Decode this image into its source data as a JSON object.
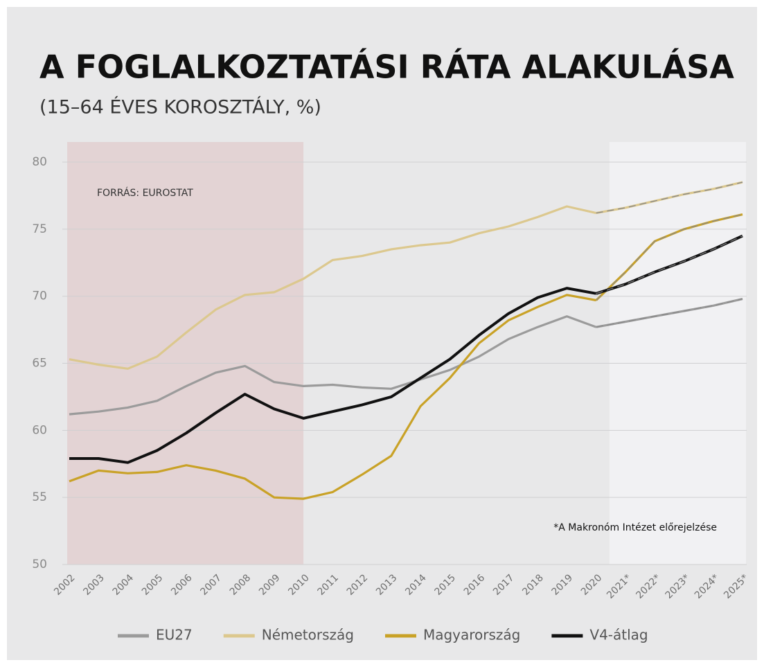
{
  "chart_data": {
    "type": "line",
    "title": "A FOGLALKOZTATÁSI RÁTA ALAKULÁSA",
    "subtitle": "(15–64 ÉVES KOROSZTÁLY, %)",
    "annotations": [
      "FORRÁS: EUROSTAT",
      "*A Makronóm Intézet előrejelzése"
    ],
    "categories": [
      "2002",
      "2003",
      "2004",
      "2005",
      "2006",
      "2007",
      "2008",
      "2009",
      "2010",
      "2011",
      "2012",
      "2013",
      "2014",
      "2015",
      "2016",
      "2017",
      "2018",
      "2019",
      "2020",
      "2021*",
      "2022*",
      "2023*",
      "2024*",
      "2025*"
    ],
    "series": [
      {
        "name": "EU27",
        "color": "#9b9b9b",
        "values": [
          61.2,
          61.4,
          61.7,
          62.2,
          63.3,
          64.3,
          64.8,
          63.6,
          63.3,
          63.4,
          63.2,
          63.1,
          63.8,
          64.5,
          65.5,
          66.8,
          67.7,
          68.5,
          67.7,
          68.1,
          68.5,
          68.9,
          69.3,
          69.8
        ]
      },
      {
        "name": "Németország",
        "color": "#dcc88e",
        "values": [
          65.3,
          64.9,
          64.6,
          65.5,
          67.3,
          69.0,
          70.1,
          70.3,
          71.3,
          72.7,
          73.0,
          73.5,
          73.8,
          74.0,
          74.7,
          75.2,
          75.9,
          76.7,
          76.2,
          76.6,
          77.1,
          77.6,
          78.0,
          78.5
        ]
      },
      {
        "name": "Magyarország",
        "color": "#c9a227",
        "values": [
          56.2,
          57.0,
          56.8,
          56.9,
          57.4,
          57.0,
          56.4,
          55.0,
          54.9,
          55.4,
          56.7,
          58.1,
          61.8,
          63.9,
          66.5,
          68.2,
          69.2,
          70.1,
          69.7,
          71.8,
          74.1,
          75.0,
          75.6,
          76.1
        ]
      },
      {
        "name": "V4-átlag",
        "color": "#111111",
        "values": [
          57.9,
          57.9,
          57.6,
          58.5,
          59.8,
          61.3,
          62.7,
          61.6,
          60.9,
          61.4,
          61.9,
          62.5,
          63.9,
          65.3,
          67.1,
          68.7,
          69.9,
          70.6,
          70.2,
          70.9,
          71.8,
          72.6,
          73.5,
          74.5
        ]
      }
    ],
    "ylim": [
      50,
      81.5
    ],
    "yticks": [
      50,
      55,
      60,
      65,
      70,
      75,
      80
    ],
    "grid": true,
    "highlight": {
      "from": "2002",
      "to": "2010",
      "color": "#e3d3d4"
    },
    "forecast": {
      "from": "2021*",
      "to": "2025*",
      "color": "#f1f1f3"
    },
    "legend": "bottom"
  }
}
